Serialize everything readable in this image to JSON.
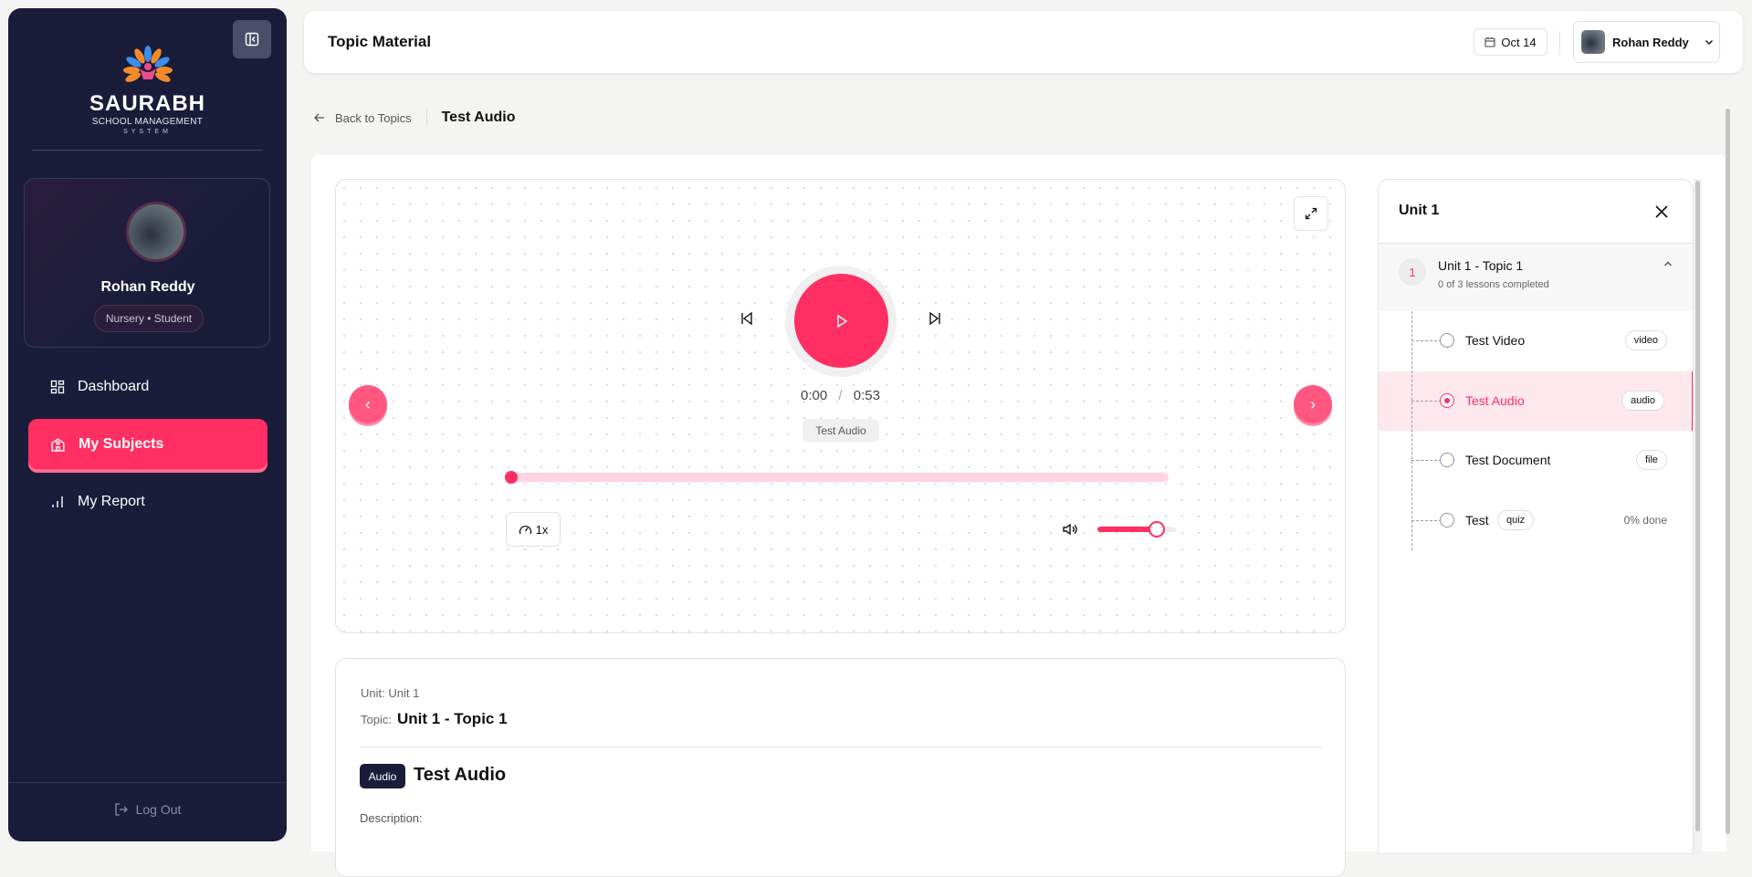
{
  "colors": {
    "accent": "#ff2e63",
    "sidebar": "#1a1d3a"
  },
  "sidebar": {
    "logo": {
      "brand": "SAURABH",
      "line1": "SCHOOL MANAGEMENT",
      "line2": "SYSTEM"
    },
    "profile": {
      "name": "Rohan Reddy",
      "role": "Nursery • Student"
    },
    "items": [
      {
        "label": "Dashboard",
        "icon": "grid-icon",
        "active": false
      },
      {
        "label": "My Subjects",
        "icon": "school-icon",
        "active": true
      },
      {
        "label": "My Report",
        "icon": "bar-chart-icon",
        "active": false
      }
    ],
    "logout": "Log Out"
  },
  "header": {
    "title": "Topic Material",
    "date": "Oct 14",
    "user": "Rohan Reddy"
  },
  "breadcrumb": {
    "back": "Back to Topics",
    "current": "Test Audio"
  },
  "player": {
    "current_time": "0:00",
    "separator": "/",
    "duration": "0:53",
    "track_label": "Test Audio",
    "speed": "1x",
    "progress": 0,
    "volume": 0.75
  },
  "info": {
    "unit_label": "Unit:",
    "unit": "Unit 1",
    "topic_label": "Topic:",
    "topic": "Unit 1 - Topic 1",
    "type_badge": "Audio",
    "title": "Test Audio",
    "description_label": "Description:"
  },
  "panel": {
    "title": "Unit 1",
    "topic": {
      "number": "1",
      "title": "Unit 1 - Topic 1",
      "subtitle": "0 of 3 lessons completed"
    },
    "lessons": [
      {
        "label": "Test Video",
        "tag": "video",
        "active": false
      },
      {
        "label": "Test Audio",
        "tag": "audio",
        "active": true
      },
      {
        "label": "Test Document",
        "tag": "file",
        "active": false
      },
      {
        "label": "Test",
        "tag": "quiz",
        "active": false,
        "progress": "0% done"
      }
    ]
  }
}
